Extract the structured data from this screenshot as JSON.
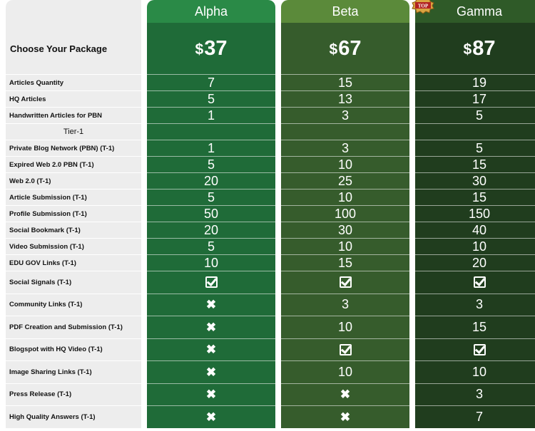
{
  "header_label": "Choose Your Package",
  "packages": [
    {
      "name": "Alpha",
      "currency": "$",
      "price": "37"
    },
    {
      "name": "Beta",
      "currency": "$",
      "price": "67"
    },
    {
      "name": "Gamma",
      "currency": "$",
      "price": "87",
      "badge": "TOP"
    }
  ],
  "rows": [
    {
      "label": "Articles Quantity",
      "values": [
        "7",
        "15",
        "19"
      ]
    },
    {
      "label": "HQ Articles",
      "values": [
        "5",
        "13",
        "17"
      ]
    },
    {
      "label": "Handwritten Articles for PBN",
      "values": [
        "1",
        "3",
        "5"
      ]
    },
    {
      "label": "Tier-1",
      "values": [
        "",
        "",
        ""
      ]
    },
    {
      "label": "Private Blog Network (PBN) (T-1)",
      "values": [
        "1",
        "3",
        "5"
      ]
    },
    {
      "label": "Expired Web 2.0 PBN (T-1)",
      "values": [
        "5",
        "10",
        "15"
      ]
    },
    {
      "label": "Web 2.0 (T-1)",
      "values": [
        "20",
        "25",
        "30"
      ]
    },
    {
      "label": "Article Submission (T-1)",
      "values": [
        "5",
        "10",
        "15"
      ]
    },
    {
      "label": "Profile Submission (T-1)",
      "values": [
        "50",
        "100",
        "150"
      ]
    },
    {
      "label": "Social Bookmark (T-1)",
      "values": [
        "20",
        "30",
        "40"
      ]
    },
    {
      "label": "Video Submission (T-1)",
      "values": [
        "5",
        "10",
        "10"
      ]
    },
    {
      "label": "EDU GOV Links (T-1)",
      "values": [
        "10",
        "15",
        "20"
      ]
    },
    {
      "label": "Social Signals (T-1)",
      "values": [
        "check",
        "check",
        "check"
      ]
    },
    {
      "label": "Community Links (T-1)",
      "values": [
        "cross",
        "3",
        "3"
      ]
    },
    {
      "label": "PDF Creation and Submission (T-1)",
      "values": [
        "cross",
        "10",
        "15"
      ]
    },
    {
      "label": "Blogspot with HQ Video (T-1)",
      "values": [
        "cross",
        "check",
        "check"
      ]
    },
    {
      "label": "Image Sharing Links (T-1)",
      "values": [
        "cross",
        "10",
        "10"
      ]
    },
    {
      "label": "Press Release (T-1)",
      "values": [
        "cross",
        "cross",
        "3"
      ]
    },
    {
      "label": "High Quality Answers (T-1)",
      "values": [
        "cross",
        "cross",
        "7"
      ]
    }
  ]
}
